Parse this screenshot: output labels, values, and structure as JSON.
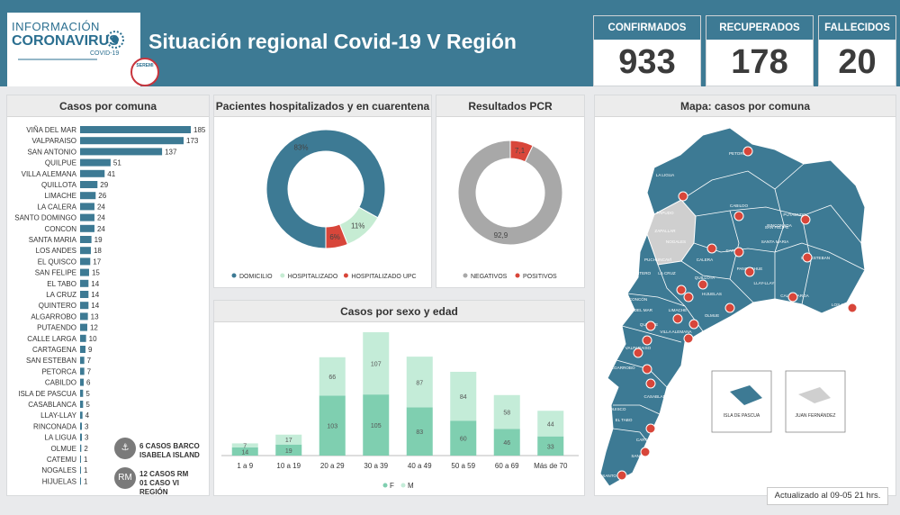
{
  "header": {
    "logo_line1": "INFORMACIÓN",
    "logo_line2": "CORONAVIRUS",
    "logo_line3": "COVID-19",
    "seal_text": "SEREMI",
    "title": "Situación regional Covid-19 V Región"
  },
  "kpis": [
    {
      "label": "CONFIRMADOS",
      "value": "933"
    },
    {
      "label": "RECUPERADOS",
      "value": "178"
    },
    {
      "label": "FALLECIDOS",
      "value": "20"
    }
  ],
  "panels": {
    "comunas_title": "Casos por comuna",
    "hosp_title": "Pacientes hospitalizados  y en cuarentena",
    "pcr_title": "Resultados PCR",
    "sexo_title": "Casos por sexo y edad",
    "mapa_title": "Mapa: casos por comuna"
  },
  "notes": {
    "barco_badge": "",
    "barco_text_1": "6 CASOS BARCO",
    "barco_text_2": "ISABELA ISLAND",
    "rm_badge": "RM",
    "rm_text_1": "12 CASOS RM",
    "rm_text_2": "01 CASO VI REGIÓN"
  },
  "updated": "Actualizado  al 09-05 21 hrs.",
  "map": {
    "pascua_label": "ISLA DE PASCUA",
    "fernandez_label": "JUAN FERNÁNDEZ",
    "color_land": "#3d7a94",
    "color_other": "#cfcfcf",
    "place_labels": [
      "PETORCA",
      "LA LIGUA",
      "CABILDO",
      "PUTAENDO",
      "PAPUDO",
      "ZAPALLAR",
      "NOGALES",
      "CATEMU",
      "SANTA MARIA",
      "SAN ESTEBAN",
      "LOS ANDES",
      "PUCHUNCAVÍ",
      "LA CRUZ",
      "QUILLOTA",
      "PANQUEHUE",
      "QUINTERO",
      "LLAY-LLAY",
      "HIJUELAS",
      "CALLE LARGA",
      "CONCÓN",
      "VIÑA DEL MAR",
      "LIMACHE",
      "OLMUE",
      "VILLA ALEMANA",
      "QUILPUE",
      "VALPARAISO",
      "ALGARROBO",
      "CASABLANCA",
      "EL QUISCO",
      "EL TABO",
      "CARTAGENA",
      "SAN ANTONIO",
      "SANTO DOMINGO",
      "CALERA",
      "RINCONADA",
      "SAN FELIPE"
    ]
  },
  "colors": {
    "bar": "#3d7a94",
    "donut_domicilio": "#3d7a94",
    "donut_hospitalizado": "#c6ecd3",
    "donut_upc": "#d8463a",
    "pcr_negativos": "#a8a8a8",
    "pcr_positivos": "#d8463a",
    "sexo_f": "#7fcfb0",
    "sexo_m": "#c4ecd8"
  },
  "chart_data": [
    {
      "type": "bar",
      "title": "Casos por comuna",
      "orientation": "horizontal",
      "categories": [
        "VIÑA DEL MAR",
        "VALPARAISO",
        "SAN ANTONIO",
        "QUILPUE",
        "VILLA ALEMANA",
        "QUILLOTA",
        "LIMACHE",
        "LA CALERA",
        "SANTO DOMINGO",
        "CONCON",
        "SANTA MARIA",
        "LOS ANDES",
        "EL QUISCO",
        "SAN FELIPE",
        "EL TABO",
        "LA CRUZ",
        "QUINTERO",
        "ALGARROBO",
        "PUTAENDO",
        "CALLE LARGA",
        "CARTAGENA",
        "SAN ESTEBAN",
        "PETORCA",
        "CABILDO",
        "ISLA DE PASCUA",
        "CASABLANCA",
        "LLAY-LLAY",
        "RINCONADA",
        "LA LIGUA",
        "OLMUE",
        "CATEMU",
        "NOGALES",
        "HIJUELAS"
      ],
      "values": [
        185,
        173,
        137,
        51,
        41,
        29,
        26,
        24,
        24,
        24,
        19,
        18,
        17,
        15,
        14,
        14,
        14,
        13,
        12,
        10,
        9,
        7,
        7,
        6,
        5,
        5,
        4,
        3,
        3,
        2,
        1,
        1,
        1
      ]
    },
    {
      "type": "pie",
      "title": "Pacientes hospitalizados  y en cuarentena",
      "labels": [
        "DOMICILIO",
        "HOSPITALIZADO",
        "HOSPITALIZADO UPC"
      ],
      "values": [
        83,
        11,
        6
      ],
      "display": [
        "83%",
        "11%",
        "6%"
      ]
    },
    {
      "type": "pie",
      "title": "Resultados PCR",
      "labels": [
        "NEGATIVOS",
        "POSITIVOS"
      ],
      "values": [
        92.9,
        7.1
      ],
      "display": [
        "92,9",
        "7,1"
      ]
    },
    {
      "type": "bar",
      "stacked": true,
      "title": "Casos por sexo y edad",
      "categories": [
        "1 a 9",
        "10 a 19",
        "20 a 29",
        "30 a 39",
        "40 a 49",
        "50 a 59",
        "60 a 69",
        "Más de 70"
      ],
      "series": [
        {
          "name": "F",
          "values": [
            14,
            19,
            103,
            105,
            83,
            60,
            46,
            33
          ]
        },
        {
          "name": "M",
          "values": [
            7,
            17,
            66,
            107,
            87,
            84,
            58,
            44
          ]
        }
      ]
    }
  ]
}
